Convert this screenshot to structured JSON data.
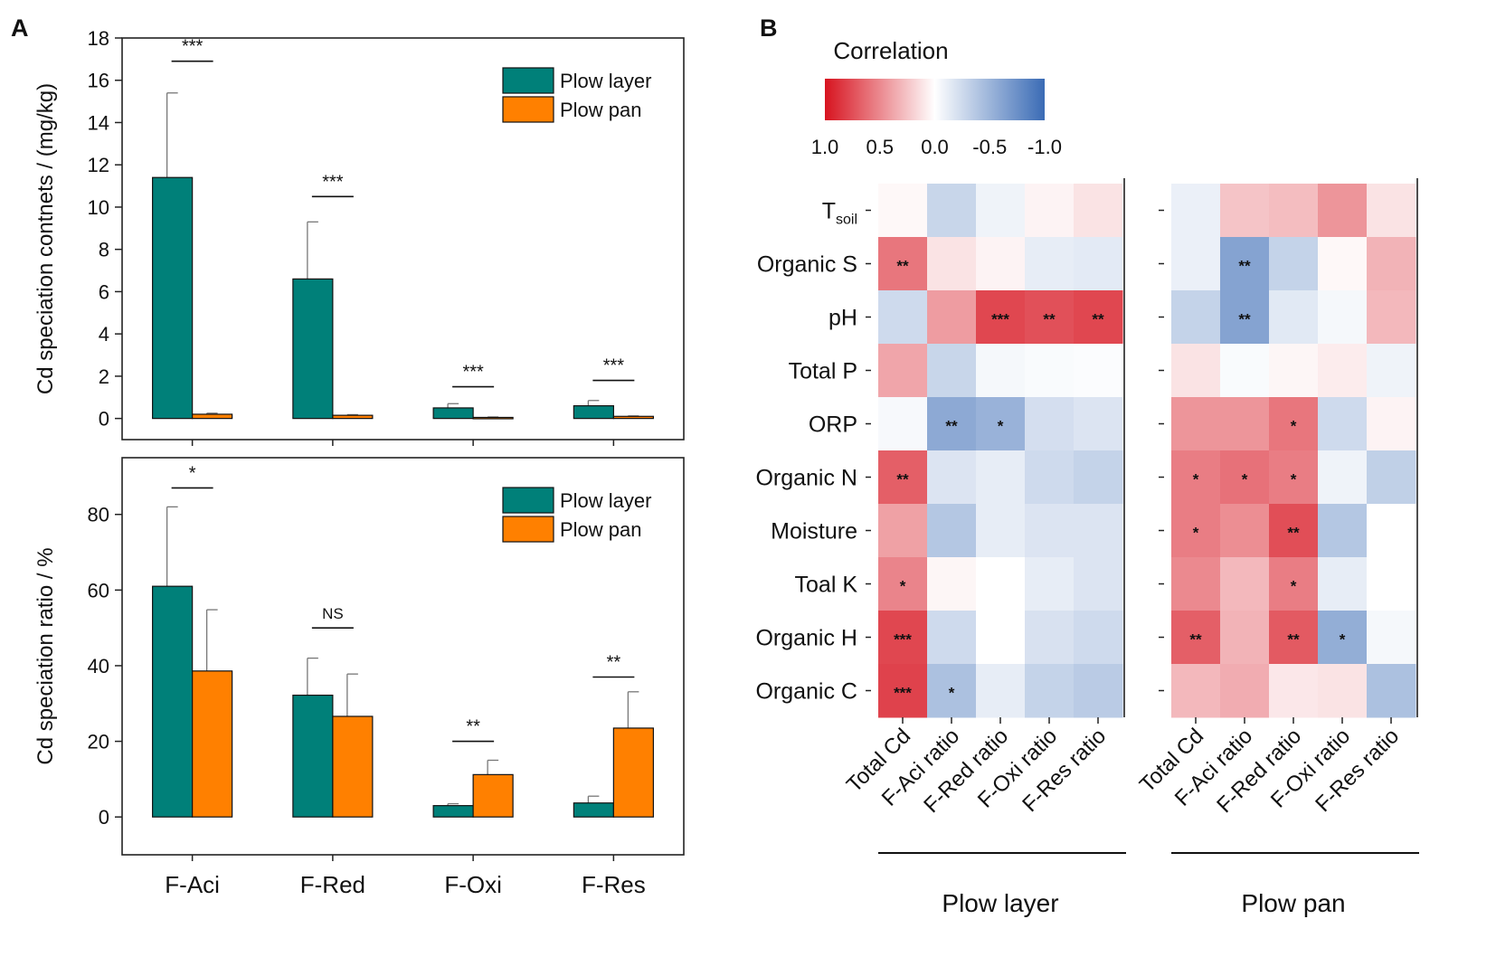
{
  "panel_labels": {
    "a": "A",
    "b": "B"
  },
  "colors": {
    "plow_layer": "#008079",
    "plow_pan": "#ff8000",
    "axis": "#222222",
    "neg": "#3a6bb5",
    "pos": "#d7131f"
  },
  "chart_data": [
    {
      "type": "bar",
      "id": "A-top",
      "ylabel": "Cd speciation contnets / (mg/kg)",
      "ylim": [
        -1,
        18
      ],
      "yticks": [
        0,
        2,
        4,
        6,
        8,
        10,
        12,
        14,
        16,
        18
      ],
      "categories": [
        "F-Aci",
        "F-Red",
        "F-Oxi",
        "F-Res"
      ],
      "series": [
        {
          "name": "Plow layer",
          "values": [
            11.4,
            6.6,
            0.5,
            0.6
          ],
          "errors": [
            4.0,
            2.7,
            0.2,
            0.25
          ]
        },
        {
          "name": "Plow pan",
          "values": [
            0.2,
            0.15,
            0.05,
            0.1
          ],
          "errors": [
            0.05,
            0.03,
            0.02,
            0.02
          ]
        }
      ],
      "significance": [
        "***",
        "***",
        "***",
        "***"
      ],
      "sig_levels": [
        16.9,
        10.5,
        1.5,
        1.8
      ],
      "legend": [
        "Plow layer",
        "Plow pan"
      ]
    },
    {
      "type": "bar",
      "id": "A-bottom",
      "ylabel": "Cd speciation ratio / %",
      "ylim": [
        -10,
        95
      ],
      "yticks": [
        0,
        20,
        40,
        60,
        80
      ],
      "xlabel_ticks": [
        "F-Aci",
        "F-Red",
        "F-Oxi",
        "F-Res"
      ],
      "categories": [
        "F-Aci",
        "F-Red",
        "F-Oxi",
        "F-Res"
      ],
      "series": [
        {
          "name": "Plow layer",
          "values": [
            61.0,
            32.2,
            3.0,
            3.7
          ],
          "errors": [
            21.0,
            9.8,
            0.5,
            1.8
          ]
        },
        {
          "name": "Plow pan",
          "values": [
            38.6,
            26.6,
            11.2,
            23.5
          ],
          "errors": [
            16.2,
            11.2,
            3.8,
            9.6
          ]
        }
      ],
      "significance": [
        "*",
        "NS",
        "**",
        "**"
      ],
      "sig_levels": [
        87,
        50,
        20,
        37
      ],
      "legend": [
        "Plow layer",
        "Plow pan"
      ]
    },
    {
      "type": "heatmap",
      "id": "B",
      "colorbar_title": "Correlation",
      "colorbar_ticks": [
        "1.0",
        "0.5",
        "0.0",
        "-0.5",
        "-1.0"
      ],
      "rows": [
        {
          "label": "T",
          "sub": "soil"
        },
        {
          "label": "Organic S"
        },
        {
          "label": "pH"
        },
        {
          "label": "Total P"
        },
        {
          "label": "ORP"
        },
        {
          "label": "Organic N"
        },
        {
          "label": "Moisture"
        },
        {
          "label": "Toal K"
        },
        {
          "label": "Organic H"
        },
        {
          "label": "Organic C"
        }
      ],
      "columns": [
        "Total Cd",
        "F-Aci ratio",
        "F-Red ratio",
        "F-Oxi ratio",
        "F-Res ratio"
      ],
      "groups": [
        {
          "name": "Plow layer",
          "values": [
            [
              0.03,
              -0.28,
              -0.08,
              0.05,
              0.12
            ],
            [
              0.58,
              0.12,
              0.05,
              -0.12,
              -0.14
            ],
            [
              -0.25,
              0.42,
              0.78,
              0.74,
              0.78
            ],
            [
              0.38,
              -0.28,
              -0.05,
              -0.03,
              -0.02
            ],
            [
              -0.04,
              -0.58,
              -0.52,
              -0.22,
              -0.18
            ],
            [
              0.68,
              -0.18,
              -0.12,
              -0.25,
              -0.3
            ],
            [
              0.4,
              -0.38,
              -0.12,
              -0.18,
              -0.18
            ],
            [
              0.52,
              0.04,
              0.0,
              -0.12,
              -0.18
            ],
            [
              0.78,
              -0.25,
              0.0,
              -0.2,
              -0.25
            ],
            [
              0.8,
              -0.42,
              -0.12,
              -0.3,
              -0.35
            ]
          ],
          "stars": [
            [
              "",
              "",
              "",
              "",
              ""
            ],
            [
              "**",
              "",
              "",
              "",
              ""
            ],
            [
              "",
              "",
              "***",
              "**",
              "**"
            ],
            [
              "",
              "",
              "",
              "",
              ""
            ],
            [
              "",
              "**",
              "*",
              "",
              ""
            ],
            [
              "**",
              "",
              "",
              "",
              ""
            ],
            [
              "",
              "",
              "",
              "",
              ""
            ],
            [
              "*",
              "",
              "",
              "",
              ""
            ],
            [
              "***",
              "",
              "",
              "",
              ""
            ],
            [
              "***",
              "*",
              "",
              "",
              ""
            ]
          ]
        },
        {
          "name": "Plow pan",
          "values": [
            [
              -0.1,
              0.25,
              0.28,
              0.45,
              0.12
            ],
            [
              -0.1,
              -0.62,
              -0.3,
              0.03,
              0.32
            ],
            [
              -0.3,
              -0.62,
              -0.15,
              -0.05,
              0.3
            ],
            [
              0.12,
              -0.03,
              0.04,
              0.08,
              -0.08
            ],
            [
              0.45,
              0.45,
              0.58,
              -0.25,
              0.05
            ],
            [
              0.55,
              0.6,
              0.55,
              -0.08,
              -0.32
            ],
            [
              0.55,
              0.48,
              0.75,
              -0.38,
              0.0
            ],
            [
              0.5,
              0.3,
              0.55,
              -0.12,
              0.0
            ],
            [
              0.68,
              0.32,
              0.7,
              -0.55,
              -0.05
            ],
            [
              0.3,
              0.35,
              0.1,
              0.12,
              -0.42
            ]
          ],
          "stars": [
            [
              "",
              "",
              "",
              "",
              ""
            ],
            [
              "",
              "**",
              "",
              "",
              ""
            ],
            [
              "",
              "**",
              "",
              "",
              ""
            ],
            [
              "",
              "",
              "",
              "",
              ""
            ],
            [
              "",
              "",
              "*",
              "",
              ""
            ],
            [
              "*",
              "*",
              "*",
              "",
              ""
            ],
            [
              "*",
              "",
              "**",
              "",
              ""
            ],
            [
              "",
              "",
              "*",
              "",
              ""
            ],
            [
              "**",
              "",
              "**",
              "*",
              ""
            ],
            [
              "",
              "",
              "",
              "",
              ""
            ]
          ]
        }
      ]
    }
  ]
}
